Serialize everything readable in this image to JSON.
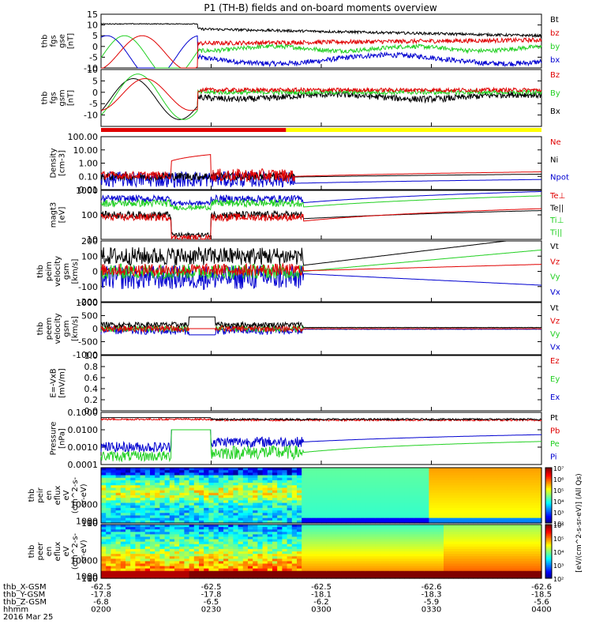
{
  "title": "P1 (TH-B) fields and on-board moments overview",
  "colors": {
    "black": "#000000",
    "red": "#e00000",
    "green": "#22d022",
    "blue": "#0000d0",
    "yellow": "#ffff00"
  },
  "mode_bar": {
    "colors": [
      "red",
      "yellow"
    ],
    "split_time": 0.42
  },
  "chart_data": [
    {
      "type": "line",
      "id": "fgs_gse",
      "ylabel": [
        "thb",
        "fgs",
        "gse",
        "[nT]"
      ],
      "ylim": [
        -10,
        15
      ],
      "yticks": [
        -10,
        -5,
        0,
        5,
        10,
        15
      ],
      "legend": [
        {
          "text": "Bt",
          "color": "black"
        },
        {
          "text": "bz",
          "color": "red"
        },
        {
          "text": "by",
          "color": "green"
        },
        {
          "text": "bx",
          "color": "blue"
        }
      ]
    },
    {
      "type": "line",
      "id": "fgs_gsm",
      "ylabel": [
        "thb",
        "fgs",
        "gsm",
        "[nT]"
      ],
      "ylim": [
        -15,
        10
      ],
      "yticks": [
        -10,
        -5,
        0,
        5,
        10
      ],
      "legend": [
        {
          "text": "Bz",
          "color": "red"
        },
        {
          "text": "By",
          "color": "green"
        },
        {
          "text": "Bx",
          "color": "black"
        }
      ]
    },
    {
      "type": "line",
      "id": "density",
      "scale": "log",
      "ylabel": [
        "Density",
        "[cm-3]"
      ],
      "ylim": [
        0.01,
        100
      ],
      "yticks": [
        "0.01",
        "0.10",
        "1.00",
        "10.00",
        "100.00"
      ],
      "legend": [
        {
          "text": "Ne",
          "color": "red"
        },
        {
          "text": "Ni",
          "color": "black"
        },
        {
          "text": "Npot",
          "color": "blue"
        }
      ]
    },
    {
      "type": "line",
      "id": "temp",
      "scale": "log",
      "ylabel": [
        "magt3",
        "[eV]"
      ],
      "ylim": [
        10,
        1000
      ],
      "yticks": [
        "10",
        "100",
        "1000"
      ],
      "legend": [
        {
          "text": "Te⊥",
          "color": "red"
        },
        {
          "text": "Te||",
          "color": "black"
        },
        {
          "text": "Ti⊥",
          "color": "green"
        },
        {
          "text": "Ti||",
          "color": "green"
        }
      ]
    },
    {
      "type": "line",
      "id": "peim",
      "ylabel": [
        "thb",
        "peim",
        "velocity",
        "gsm",
        "[km/s]"
      ],
      "ylim": [
        -200,
        200
      ],
      "yticks": [
        -200,
        -100,
        0,
        100,
        200
      ],
      "legend": [
        {
          "text": "Vt",
          "color": "black"
        },
        {
          "text": "Vz",
          "color": "red"
        },
        {
          "text": "Vy",
          "color": "green"
        },
        {
          "text": "Vx",
          "color": "blue"
        }
      ]
    },
    {
      "type": "line",
      "id": "peem",
      "ylabel": [
        "thb",
        "peem",
        "velocity",
        "gsm",
        "[km/s]"
      ],
      "ylim": [
        -1000,
        1000
      ],
      "yticks": [
        -1000,
        -500,
        0,
        500,
        1000
      ],
      "legend": [
        {
          "text": "Vt",
          "color": "black"
        },
        {
          "text": "Vz",
          "color": "red"
        },
        {
          "text": "Vy",
          "color": "green"
        },
        {
          "text": "Vx",
          "color": "blue"
        }
      ]
    },
    {
      "type": "line",
      "id": "efield",
      "ylabel": [
        "E=-VxB",
        "[mV/m]"
      ],
      "ylim": [
        0,
        1
      ],
      "yticks": [
        "0.0",
        "0.2",
        "0.4",
        "0.6",
        "0.8",
        "1.0"
      ],
      "legend": [
        {
          "text": "Ez",
          "color": "red"
        },
        {
          "text": "Ey",
          "color": "green"
        },
        {
          "text": "Ex",
          "color": "blue"
        }
      ]
    },
    {
      "type": "line",
      "id": "pressure",
      "scale": "log",
      "ylabel": [
        "Pressure",
        "[nPa]"
      ],
      "ylim": [
        0.0001,
        0.1
      ],
      "yticks": [
        "0.0001",
        "0.0010",
        "0.0100",
        "0.1000"
      ],
      "legend": [
        {
          "text": "Pt",
          "color": "black"
        },
        {
          "text": "Pb",
          "color": "red"
        },
        {
          "text": "Pe",
          "color": "green"
        },
        {
          "text": "Pi",
          "color": "blue"
        }
      ]
    },
    {
      "type": "heatmap",
      "id": "peir",
      "ylabel": [
        "thb",
        "peir",
        "en",
        "eflux",
        "eV",
        "(cm^2-s-",
        "sr-eV)"
      ],
      "ylim": [
        5,
        30000
      ],
      "yticks": [
        "10",
        "100",
        "1000",
        "10000"
      ],
      "colorbar": {
        "min_exp": 2,
        "max_exp": 7,
        "ticks": [
          "10²",
          "10³",
          "10⁴",
          "10⁵",
          "10⁶",
          "10⁷"
        ]
      }
    },
    {
      "type": "heatmap",
      "id": "peer",
      "ylabel": [
        "thb",
        "peer",
        "en",
        "eflux",
        "eV",
        "(cm^2-s-",
        "sr-eV)"
      ],
      "ylim": [
        5,
        30000
      ],
      "yticks": [
        "10",
        "100",
        "1000",
        "10000"
      ],
      "colorbar": {
        "min_exp": 2,
        "max_exp": 6,
        "ticks": [
          "10²",
          "10³",
          "10⁴",
          "10⁵",
          "10⁶"
        ]
      }
    }
  ],
  "colorbar_label": "[eV/(cm^2-s-sr-eV)] (All Qs)",
  "xaxis": {
    "row_labels": [
      "thb_X-GSM",
      "thb_Y-GSM",
      "thb_Z-GSM",
      "hhmm",
      "2016 Mar 25"
    ],
    "ticks": [
      {
        "t": 0.0,
        "values": [
          "-62.5",
          "-17.8",
          "-6.8",
          "0200"
        ]
      },
      {
        "t": 0.25,
        "values": [
          "-62.5",
          "-17.8",
          "-6.5",
          "0230"
        ]
      },
      {
        "t": 0.5,
        "values": [
          "-62.5",
          "-18.1",
          "-6.2",
          "0300"
        ]
      },
      {
        "t": 0.75,
        "values": [
          "-62.6",
          "-18.3",
          "-5.9",
          "0330"
        ]
      },
      {
        "t": 1.0,
        "values": [
          "-62.6",
          "-18.5",
          "-5.6",
          "0400"
        ]
      }
    ]
  }
}
